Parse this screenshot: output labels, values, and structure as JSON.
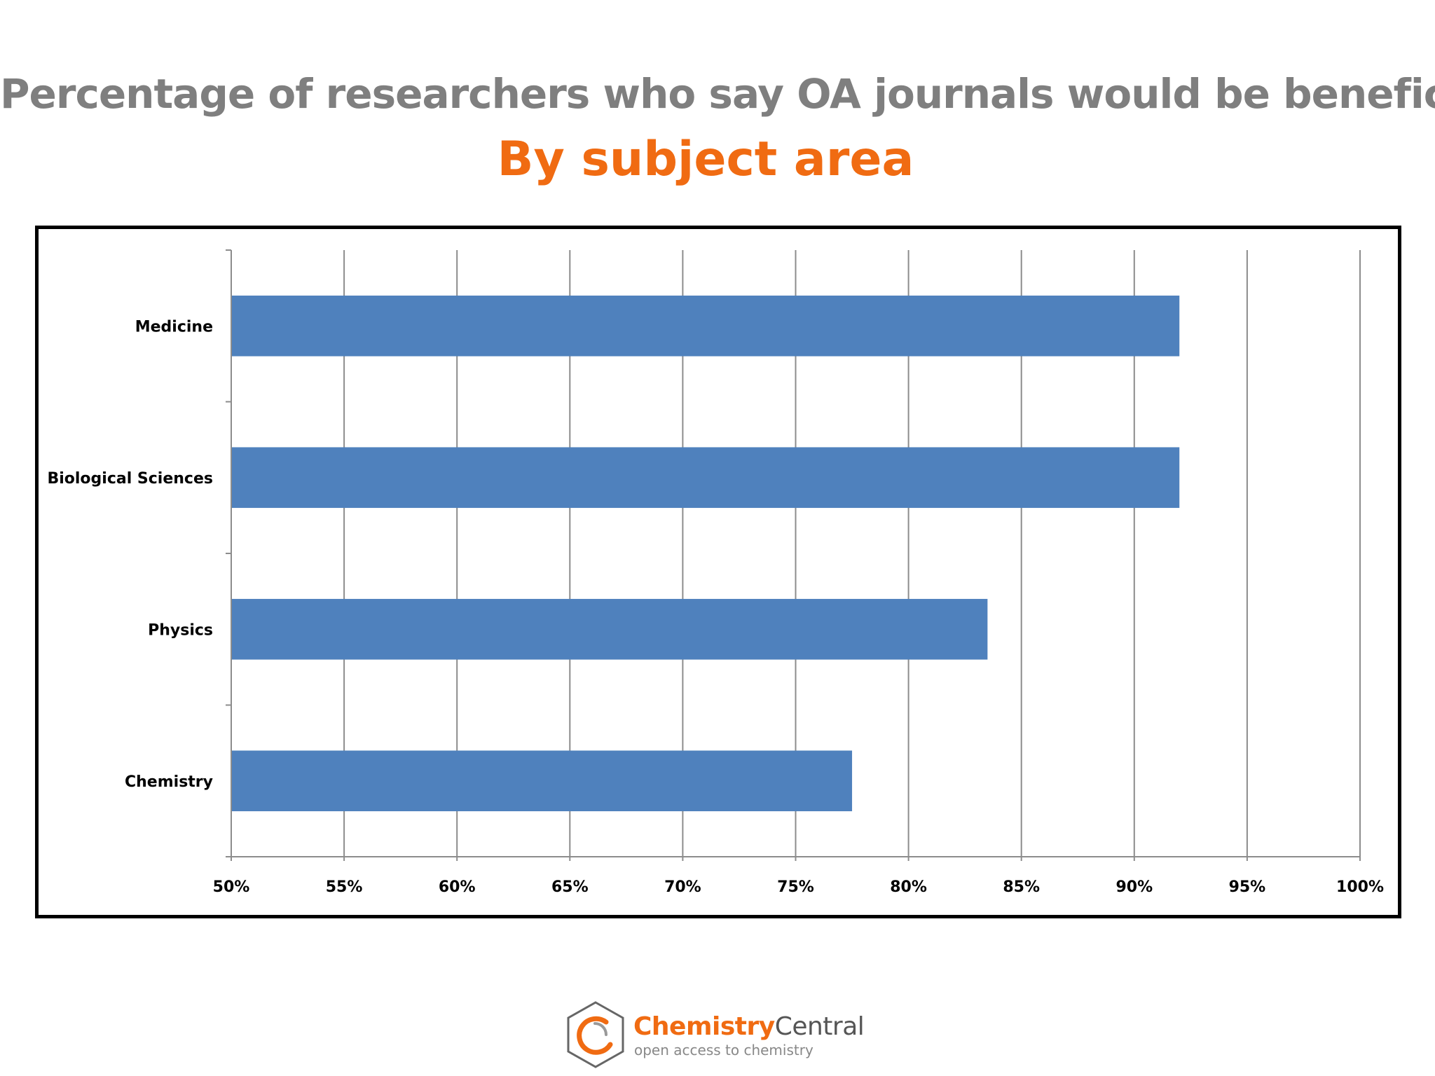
{
  "title": "Percentage of researchers who say OA journals would be beneficial",
  "subtitle": "By subject area",
  "chart_data": {
    "type": "bar",
    "orientation": "horizontal",
    "categories": [
      "Medicine",
      "Biological Sciences",
      "Physics",
      "Chemistry"
    ],
    "values": [
      92,
      92,
      83.5,
      77.5
    ],
    "xlim": [
      50,
      100
    ],
    "x_ticks": [
      "50%",
      "55%",
      "60%",
      "65%",
      "70%",
      "75%",
      "80%",
      "85%",
      "90%",
      "95%",
      "100%"
    ],
    "grid": true,
    "bar_color": "#4f81bd",
    "xlabel": "",
    "ylabel": ""
  },
  "logo": {
    "name_part1": "Chemistry",
    "name_part2": "Central",
    "tagline": "open access to chemistry",
    "accent_color": "#f06b12"
  }
}
